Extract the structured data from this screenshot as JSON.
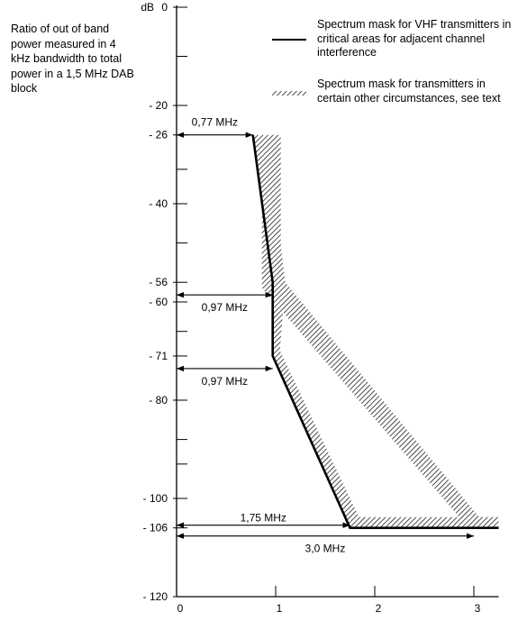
{
  "chart_data": {
    "type": "line",
    "ylabel": "Ratio of out of band power measured in 4 kHz bandwidth to total power in a 1,5 MHz DAB block",
    "yunit": "dB",
    "xlim": [
      0,
      3.25
    ],
    "ylim": [
      -120,
      0
    ],
    "x_ticks": [
      0,
      1,
      2,
      3
    ],
    "y_ticks": [
      0,
      -20,
      -26,
      -40,
      -56,
      -60,
      -71,
      -80,
      -100,
      -106,
      -120
    ],
    "series": [
      {
        "name": "Spectrum mask for VHF transmitters in critical areas for adjacent channel interference",
        "style": "solid",
        "points": [
          [
            0.77,
            -26
          ],
          [
            0.97,
            -56
          ],
          [
            0.97,
            -71
          ],
          [
            1.75,
            -106
          ],
          [
            3.25,
            -106
          ]
        ]
      },
      {
        "name": "Spectrum mask for transmitters in certain other circumstances, see text",
        "style": "hatched",
        "points": [
          [
            0.97,
            -26
          ],
          [
            0.97,
            -56
          ],
          [
            3.0,
            -106
          ],
          [
            3.25,
            -106
          ]
        ]
      }
    ],
    "annotations": [
      {
        "text": "0,77 MHz",
        "y": -26,
        "from": 0,
        "to": 0.77
      },
      {
        "text": "0,97 MHz",
        "y": -56,
        "from": 0,
        "to": 0.97
      },
      {
        "text": "0,97 MHz",
        "y": -71,
        "from": 0,
        "to": 0.97
      },
      {
        "text": "1,75 MHz",
        "y": -106,
        "from": 0,
        "to": 1.75
      },
      {
        "text": "3,0 MHz",
        "y": -106,
        "from": 0,
        "to": 3.0
      }
    ]
  }
}
